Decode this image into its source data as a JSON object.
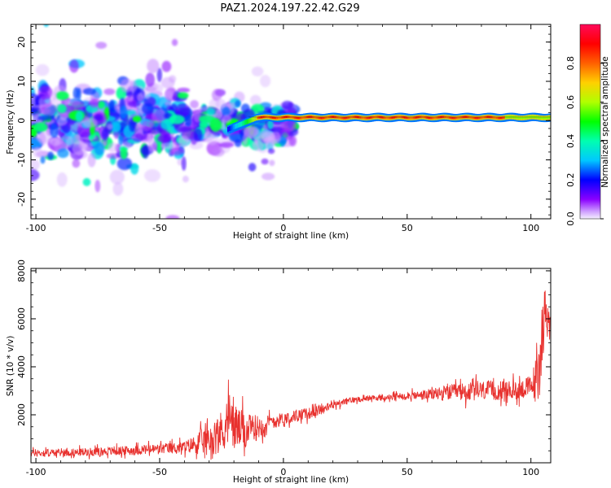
{
  "title": "PAZ1.2024.197.22.42.G29",
  "colors": {
    "background": "#ffffff",
    "snr_line": "#e8312e",
    "band": "#f12a2a",
    "axis": "#000000"
  },
  "chart_data": [
    {
      "type": "heatmap",
      "xlabel": "Height of straight line (km)",
      "ylabel": "Frequency (Hz)",
      "xlim": [
        -102,
        108
      ],
      "ylim": [
        -25,
        24.5
      ],
      "xticks": [
        -100,
        -50,
        0,
        50,
        100
      ],
      "yticks": [
        20,
        10,
        0,
        -10,
        -20
      ],
      "xtick_labels": [
        "-100",
        "-50",
        "0",
        "50",
        "100"
      ],
      "ytick_labels": [
        "20",
        "10",
        "0",
        "-10",
        "-20"
      ],
      "grid": false,
      "colorbar": {
        "label": "Normalized spectral amplitude",
        "range": [
          0,
          1
        ],
        "ticks": [
          0.0,
          0.2,
          0.4,
          0.6,
          0.8
        ],
        "tick_labels": [
          "0.0",
          "0.2",
          "0.4",
          "0.6",
          "0.8"
        ],
        "colormap": "gist_rainbow_r"
      },
      "dominant_band": {
        "x_from": -10,
        "x_to": 108,
        "frequency": 0.8,
        "amplitude": 0.85
      },
      "scattered_region": {
        "x_from": -102,
        "x_to": -10,
        "frequency_from": -15,
        "frequency_to": 8,
        "amplitude_max": 0.45
      }
    },
    {
      "type": "line",
      "xlabel": "Height of straight line (km)",
      "ylabel": "SNR (10 * v/v)",
      "xlim": [
        -102,
        108
      ],
      "ylim": [
        0,
        8100
      ],
      "xticks": [
        -100,
        -50,
        0,
        50,
        100
      ],
      "yticks": [
        2000,
        4000,
        6000,
        8000
      ],
      "xtick_labels": [
        "-100",
        "-50",
        "0",
        "50",
        "100"
      ],
      "ytick_labels": [
        "2000",
        "4000",
        "6000",
        "8000"
      ],
      "grid": false,
      "series": [
        {
          "x": [
            -102,
            -90,
            -80,
            -70,
            -60,
            -50,
            -40,
            -35,
            -30,
            -25,
            -22,
            -20,
            -15,
            -10,
            -5,
            0,
            5,
            10,
            15,
            20,
            25,
            30,
            35,
            40,
            45,
            50,
            55,
            60,
            65,
            70,
            75,
            80,
            85,
            90,
            95,
            100,
            103,
            105,
            106,
            108
          ],
          "y": [
            400,
            420,
            450,
            480,
            520,
            580,
            650,
            800,
            1000,
            1300,
            1900,
            1500,
            1300,
            1500,
            1700,
            1850,
            1950,
            2050,
            2200,
            2400,
            2550,
            2650,
            2700,
            2700,
            2750,
            2800,
            2800,
            2850,
            2900,
            2950,
            2950,
            3000,
            3000,
            3000,
            3050,
            3150,
            3600,
            6000,
            6500,
            5600
          ],
          "noise": [
            150,
            150,
            170,
            180,
            200,
            220,
            250,
            400,
            700,
            900,
            1100,
            1000,
            700,
            500,
            300,
            250,
            250,
            250,
            200,
            150,
            150,
            120,
            120,
            120,
            150,
            150,
            200,
            250,
            300,
            350,
            400,
            400,
            400,
            400,
            400,
            500,
            1200,
            1500,
            800,
            300
          ]
        }
      ]
    }
  ]
}
